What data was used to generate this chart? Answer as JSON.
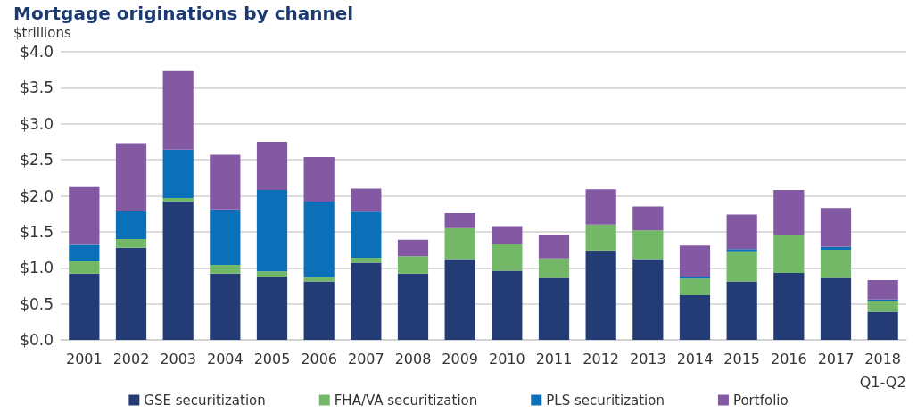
{
  "chart_data": {
    "type": "bar",
    "title": "Mortgage originations by channel",
    "ylabel": "$trillions",
    "categories": [
      "2001",
      "2002",
      "2003",
      "2004",
      "2005",
      "2006",
      "2007",
      "2008",
      "2009",
      "2010",
      "2011",
      "2012",
      "2013",
      "2014",
      "2015",
      "2016",
      "2017",
      "2018\nQ1-Q2"
    ],
    "stacked": true,
    "series": [
      {
        "name": "GSE securitization",
        "color": "#243c75",
        "values": [
          0.92,
          1.28,
          1.92,
          0.92,
          0.88,
          0.81,
          1.07,
          0.92,
          1.12,
          0.96,
          0.86,
          1.24,
          1.12,
          0.62,
          0.81,
          0.93,
          0.86,
          0.39
        ]
      },
      {
        "name": "FHA/VA securitization",
        "color": "#72b866",
        "values": [
          0.17,
          0.12,
          0.05,
          0.12,
          0.07,
          0.06,
          0.07,
          0.24,
          0.43,
          0.37,
          0.27,
          0.36,
          0.4,
          0.23,
          0.42,
          0.52,
          0.39,
          0.15
        ]
      },
      {
        "name": "PLS securitization",
        "color": "#0b70b8",
        "values": [
          0.23,
          0.39,
          0.67,
          0.77,
          1.13,
          1.05,
          0.64,
          0,
          0,
          0,
          0,
          0,
          0,
          0.03,
          0.03,
          0,
          0.04,
          0.02
        ]
      },
      {
        "name": "Portfolio",
        "color": "#8459a4",
        "values": [
          0.8,
          0.94,
          1.09,
          0.76,
          0.67,
          0.62,
          0.32,
          0.23,
          0.21,
          0.25,
          0.33,
          0.49,
          0.33,
          0.43,
          0.48,
          0.63,
          0.54,
          0.27
        ]
      }
    ],
    "ylim": [
      0,
      4
    ],
    "yticks": [
      {
        "value": 0,
        "label": "$0.0"
      },
      {
        "value": 0.5,
        "label": "$0.5"
      },
      {
        "value": 1,
        "label": "$1.0"
      },
      {
        "value": 1.5,
        "label": "$1.5"
      },
      {
        "value": 2,
        "label": "$2.0"
      },
      {
        "value": 2.5,
        "label": "$2.5"
      },
      {
        "value": 3,
        "label": "$3.0"
      },
      {
        "value": 3.5,
        "label": "$3.5"
      },
      {
        "value": 4,
        "label": "$4.0"
      }
    ],
    "grid": "y",
    "legend": "bottom"
  }
}
